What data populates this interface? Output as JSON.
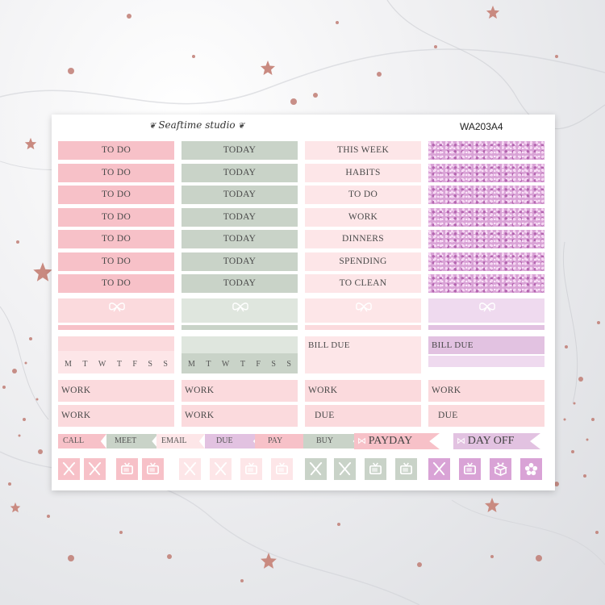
{
  "sheet": {
    "brand": "Seaftime studio",
    "code": "WA203A4"
  },
  "columns": {
    "col1": [
      "TO DO",
      "TO DO",
      "TO DO",
      "TO DO",
      "TO DO",
      "TO DO",
      "TO DO"
    ],
    "col2": [
      "TODAY",
      "TODAY",
      "TODAY",
      "TODAY",
      "TODAY",
      "TODAY",
      "TODAY"
    ],
    "col3": [
      "THIS WEEK",
      "HABITS",
      "TO DO",
      "WORK",
      "DINNERS",
      "SPENDING",
      "TO CLEAN"
    ]
  },
  "bill_due": {
    "c3": "BILL DUE",
    "c4": "BILL DUE"
  },
  "weekdays": [
    "M",
    "T",
    "W",
    "T",
    "F",
    "S",
    "S"
  ],
  "work_rows": {
    "c1": [
      "WORK",
      "WORK"
    ],
    "c2": [
      "WORK",
      "WORK"
    ],
    "c3": [
      "WORK",
      "DUE"
    ],
    "c4": [
      "WORK",
      "DUE"
    ]
  },
  "flags": [
    "CALL",
    "MEET",
    "EMAIL",
    "DUE",
    "PAY",
    "BUY"
  ],
  "banners": {
    "payday": "PAYDAY",
    "dayoff": "DAY OFF"
  },
  "icons": [
    {
      "name": "utensils-icon",
      "color": "#f7c1c8"
    },
    {
      "name": "utensils-icon",
      "color": "#f7c1c8"
    },
    {
      "name": "tv-icon",
      "color": "#f7c1c8"
    },
    {
      "name": "tv-icon",
      "color": "#f7c1c8"
    },
    {
      "name": "utensils-icon",
      "color": "#fde6e8"
    },
    {
      "name": "utensils-icon",
      "color": "#fde6e8"
    },
    {
      "name": "tv-icon",
      "color": "#fde6e8"
    },
    {
      "name": "tv-icon",
      "color": "#fde6e8"
    },
    {
      "name": "utensils-icon",
      "color": "#c9d3c8"
    },
    {
      "name": "utensils-icon",
      "color": "#c9d3c8"
    },
    {
      "name": "tv-icon",
      "color": "#c9d3c8"
    },
    {
      "name": "tv-icon",
      "color": "#c9d3c8"
    },
    {
      "name": "utensils-icon",
      "color": "#d9a3d6"
    },
    {
      "name": "tv-icon",
      "color": "#d9a3d6"
    },
    {
      "name": "gift-box-icon",
      "color": "#d9a3d6"
    },
    {
      "name": "flower-icon",
      "color": "#d9a3d6"
    }
  ],
  "colors": {
    "pink": "#f7c1c8",
    "sage": "#c9d3c8",
    "lavender": "#e2c2e1",
    "glitter": "#d9a3d6"
  }
}
